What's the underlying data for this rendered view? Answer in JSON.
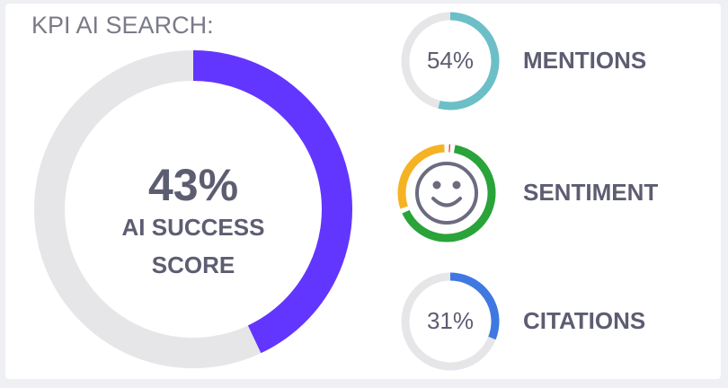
{
  "header": {
    "title": "KPI AI SEARCH:"
  },
  "main_score": {
    "value": 43,
    "value_label": "43%",
    "label_lines": [
      "AI SUCCESS",
      "SCORE"
    ],
    "color": "#6236ff"
  },
  "track_color": "#e6e6e8",
  "kpis": [
    {
      "label": "MENTIONS",
      "value": 54,
      "value_label": "54%",
      "color": "#6cbfc6"
    },
    {
      "label": "SENTIMENT",
      "segments": [
        {
          "value": 2,
          "color": "#e0402a"
        },
        {
          "value": 67,
          "color": "#2aa33a"
        },
        {
          "value": 31,
          "color": "#f5b324"
        }
      ]
    },
    {
      "label": "CITATIONS",
      "value": 31,
      "value_label": "31%",
      "color": "#3f78e0"
    }
  ]
}
